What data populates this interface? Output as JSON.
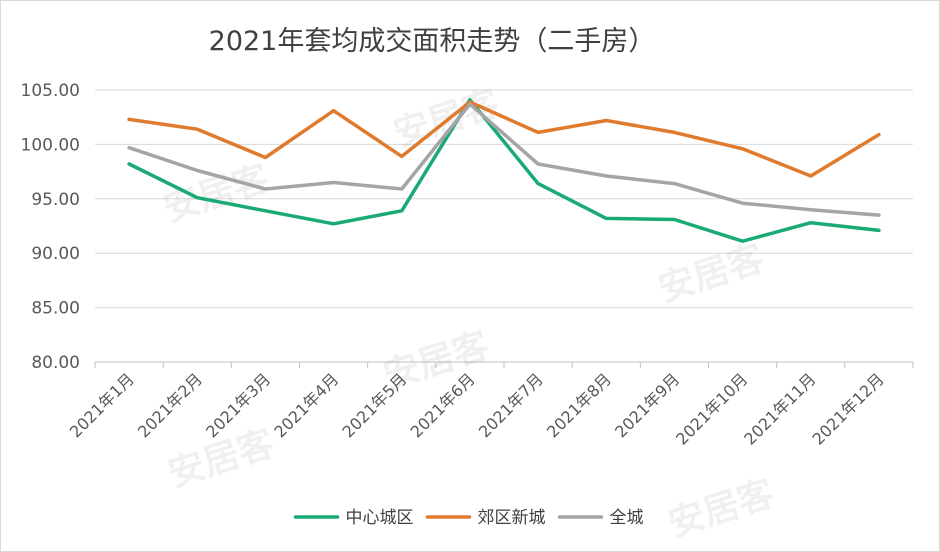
{
  "chart_data": {
    "type": "line",
    "title": "2021年套均成交面积走势（二手房）",
    "categories": [
      "2021年1月",
      "2021年2月",
      "2021年3月",
      "2021年4月",
      "2021年5月",
      "2021年6月",
      "2021年7月",
      "2021年8月",
      "2021年9月",
      "2021年10月",
      "2021年11月",
      "2021年12月"
    ],
    "yticks": [
      "80.00",
      "85.00",
      "90.00",
      "95.00",
      "100.00",
      "105.00"
    ],
    "ylim": [
      80,
      105
    ],
    "grid": true,
    "legend_position": "bottom",
    "series": [
      {
        "name": "中心城区",
        "color": "#1aaa73",
        "values": [
          98.2,
          95.1,
          93.9,
          92.7,
          93.9,
          104.1,
          96.4,
          93.2,
          93.1,
          91.1,
          92.8,
          92.1
        ]
      },
      {
        "name": "郊区新城",
        "color": "#e07b2e",
        "values": [
          102.3,
          101.4,
          98.8,
          103.1,
          98.9,
          103.9,
          101.1,
          102.2,
          101.1,
          99.6,
          97.1,
          100.9
        ]
      },
      {
        "name": "全城",
        "color": "#a5a5a5",
        "values": [
          99.7,
          97.6,
          95.9,
          96.5,
          95.9,
          103.7,
          98.2,
          97.1,
          96.4,
          94.6,
          94.0,
          93.5
        ]
      }
    ]
  },
  "watermark": "安居客"
}
